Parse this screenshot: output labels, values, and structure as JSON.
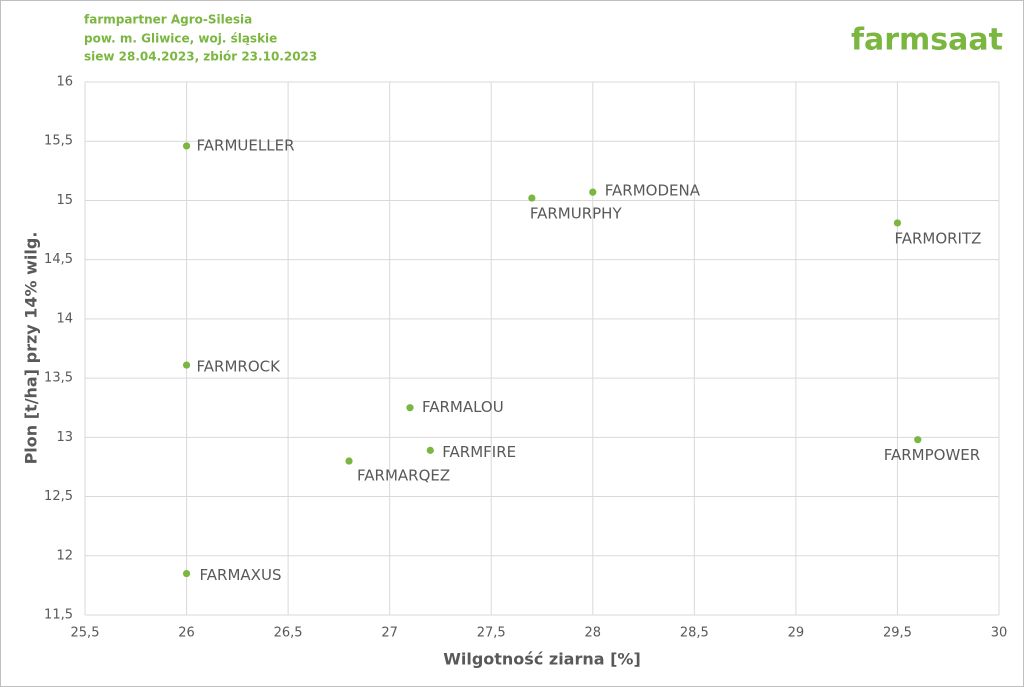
{
  "header": {
    "lines": [
      "farmpartner Agro-Silesia",
      "pow. m. Gliwice, woj. śląskie",
      "siew 28.04.2023, zbiór 23.10.2023"
    ],
    "brand": "farmsaat"
  },
  "chart_data": {
    "type": "scatter",
    "x_label": "Wilgotność ziarna [%]",
    "y_label": "Plon [t/ha] przy 14% wilg.",
    "labels": [
      "FARMUELLER",
      "FARMODENA",
      "FARMURPHY",
      "FARMORITZ",
      "FARMROCK",
      "FARMALOU",
      "FARMFIRE",
      "FARMARQEZ",
      "FARMPOWER",
      "FARMAXUS"
    ],
    "x": [
      26,
      28,
      27.7,
      29.5,
      26,
      27.1,
      27.2,
      26.8,
      29.6,
      26
    ],
    "values": [
      15.46,
      15.07,
      15.02,
      14.81,
      13.61,
      13.25,
      12.89,
      12.8,
      12.98,
      11.85
    ],
    "color": "#7ab640",
    "xlim": [
      25.5,
      30
    ],
    "xticks": [
      {
        "value": 25.5,
        "label": "25,5"
      },
      26,
      {
        "value": 26.5,
        "label": "26,5"
      },
      27,
      {
        "value": 27.5,
        "label": "27,5"
      },
      28,
      {
        "value": 28.5,
        "label": "28,5"
      },
      29,
      {
        "value": 29.5,
        "label": "29,5"
      },
      30
    ],
    "ylim": [
      11.5,
      16
    ],
    "yticks": [
      {
        "value": 11.5,
        "label": "11,5"
      },
      12,
      {
        "value": 12.5,
        "label": "12,5"
      },
      13,
      {
        "value": 13.5,
        "label": "13,5"
      },
      14,
      {
        "value": 14.5,
        "label": "14,5"
      },
      15,
      {
        "value": 15.5,
        "label": "15,5"
      },
      16
    ],
    "grid": true
  }
}
